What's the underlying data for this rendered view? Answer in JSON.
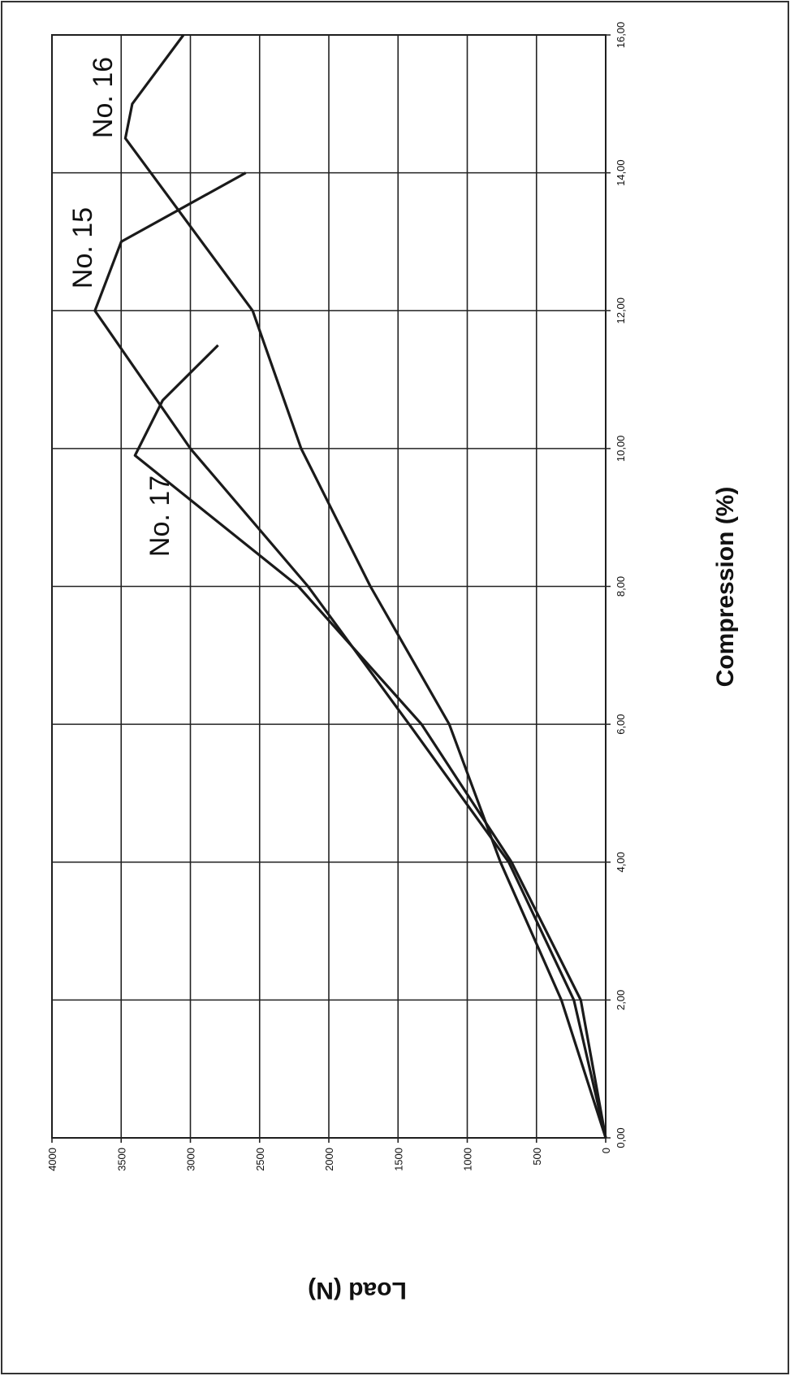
{
  "chart_data": {
    "type": "line",
    "title": "",
    "xlabel": "Compression (%)",
    "ylabel": "Load (N)",
    "xlim": [
      0,
      16
    ],
    "ylim": [
      0,
      4000
    ],
    "x_ticks": [
      "0,00",
      "2,00",
      "4,00",
      "6,00",
      "8,00",
      "10,00",
      "12,00",
      "14,00",
      "16,00"
    ],
    "y_ticks": [
      "0",
      "500",
      "1000",
      "1500",
      "2000",
      "2500",
      "3000",
      "3500",
      "4000"
    ],
    "grid": true,
    "series": [
      {
        "name": "No. 15",
        "x": [
          0,
          2.0,
          4.0,
          6.0,
          8.0,
          10.0,
          12.0,
          13.0,
          14.0
        ],
        "y": [
          0,
          230,
          700,
          1420,
          2150,
          3000,
          3690,
          3500,
          2600
        ]
      },
      {
        "name": "No. 16",
        "x": [
          0,
          2.0,
          4.0,
          6.0,
          8.0,
          10.0,
          12.0,
          14.5,
          15.0,
          16.0
        ],
        "y": [
          0,
          320,
          760,
          1130,
          1700,
          2200,
          2550,
          3470,
          3420,
          3050
        ]
      },
      {
        "name": "No. 17",
        "x": [
          0,
          2.0,
          4.0,
          6.0,
          8.0,
          9.9,
          10.7,
          11.5
        ],
        "y": [
          0,
          180,
          680,
          1330,
          2220,
          3400,
          3200,
          2800
        ]
      }
    ]
  }
}
